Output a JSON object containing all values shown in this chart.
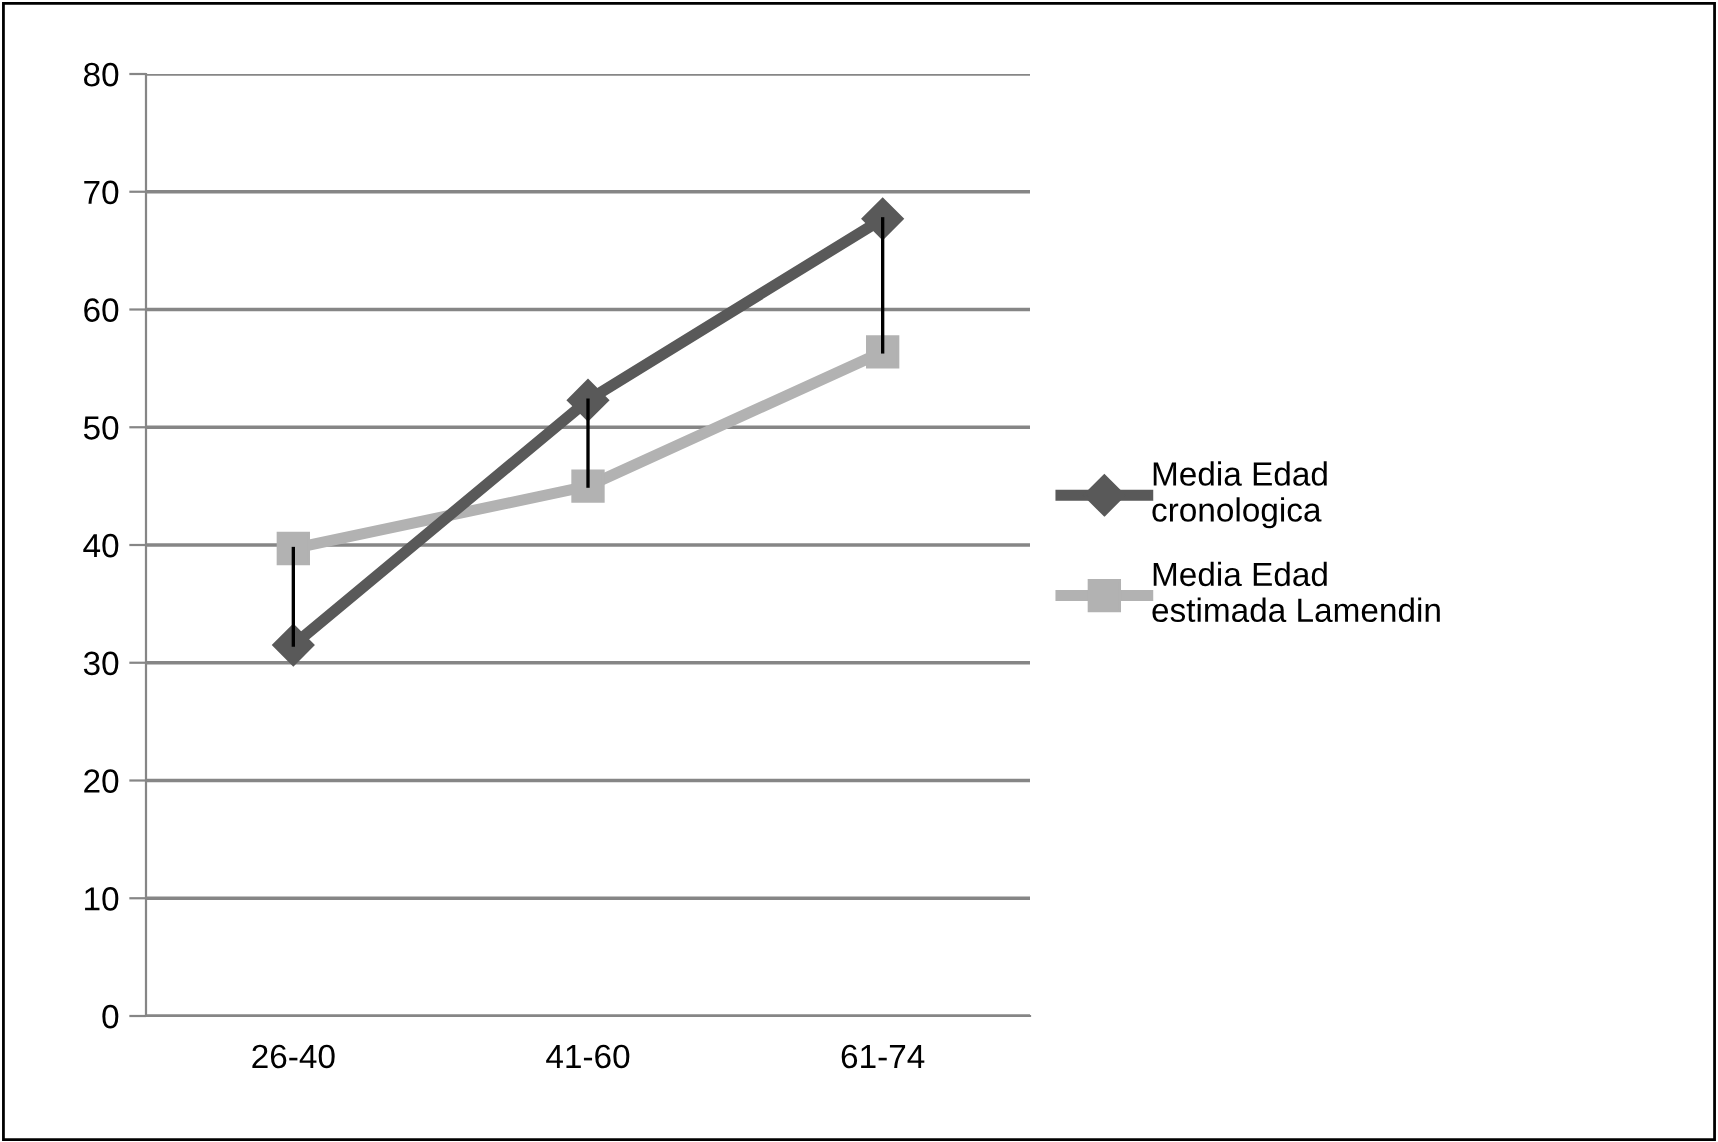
{
  "chart_data": {
    "type": "line",
    "categories": [
      "26-40",
      "41-60",
      "61-74"
    ],
    "series": [
      {
        "name": "Media Edad cronologica",
        "color": "#595959",
        "marker": "diamond",
        "values": [
          31.5,
          52.3,
          67.7
        ],
        "errors": [
          [
            31.5,
            39.7
          ],
          [
            45.0,
            52.3
          ],
          [
            56.4,
            67.7
          ]
        ]
      },
      {
        "name": "Media Edad estimada Lamendin",
        "color": "#b2b2b2",
        "marker": "square",
        "values": [
          39.7,
          45.0,
          56.4
        ]
      }
    ],
    "ylim": [
      0,
      80
    ],
    "yticks": [
      0,
      10,
      20,
      30,
      40,
      50,
      60,
      70,
      80
    ],
    "grid": "y",
    "legend": "right",
    "line_style": "solid"
  }
}
